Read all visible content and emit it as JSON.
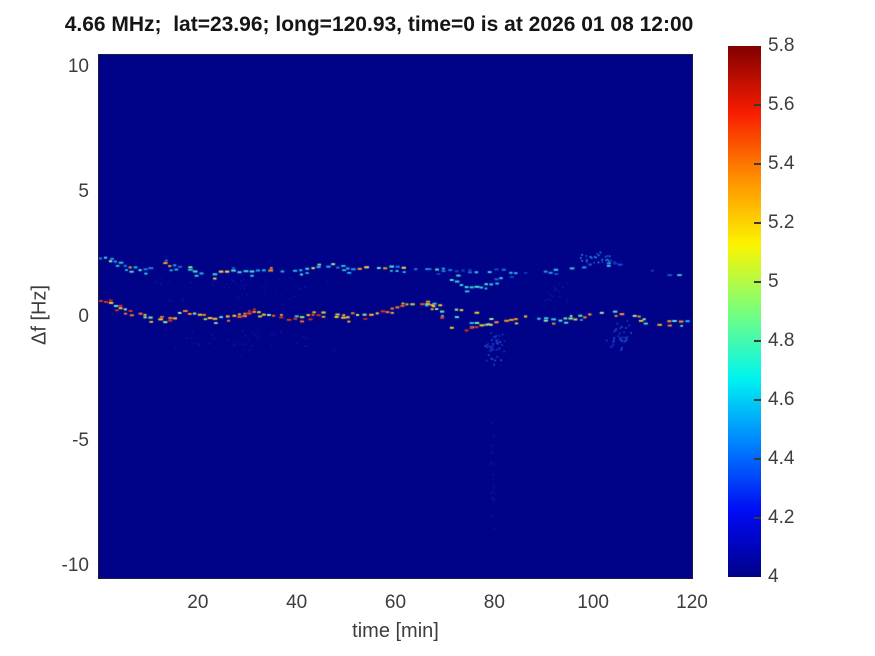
{
  "chart_data": {
    "type": "heatmap",
    "title": "4.66 MHz;  lat=23.96; long=120.93, time=0 is at 2026 01 08 12:00",
    "xlabel": "time [min]",
    "ylabel": "Δf [Hz]",
    "xlim": [
      0,
      120
    ],
    "ylim": [
      -10.5,
      10.5
    ],
    "xticks": [
      20,
      40,
      60,
      80,
      100,
      120
    ],
    "yticks": [
      10,
      5,
      0,
      -5,
      -10
    ],
    "grid": false,
    "legend": "none",
    "background_value": 4,
    "background_color": "#000287",
    "render_seed": 12,
    "colorbar": {
      "min": 4,
      "max": 5.8,
      "colormap": "jet",
      "tick_values": [
        4,
        4.2,
        4.4,
        4.6,
        4.8,
        5,
        5.2,
        5.4,
        5.6,
        5.8
      ],
      "tick_labels": [
        "4",
        "4.2",
        "4.4",
        "4.6",
        "4.8",
        "5",
        "5.2",
        "5.4",
        "5.6",
        "5.8"
      ],
      "gradient_stops": [
        {
          "pos": 0.0,
          "color": "#000287"
        },
        {
          "pos": 0.07,
          "color": "#0004c8"
        },
        {
          "pos": 0.125,
          "color": "#000cf4"
        },
        {
          "pos": 0.25,
          "color": "#0081ff"
        },
        {
          "pos": 0.375,
          "color": "#00f4f0"
        },
        {
          "pos": 0.5,
          "color": "#78ff7c"
        },
        {
          "pos": 0.625,
          "color": "#fcf400"
        },
        {
          "pos": 0.75,
          "color": "#ff9000"
        },
        {
          "pos": 0.875,
          "color": "#f81c00"
        },
        {
          "pos": 1.0,
          "color": "#820000"
        }
      ]
    },
    "traces": [
      {
        "name": "upper-doppler-trace",
        "value_range": [
          4.3,
          5.2
        ],
        "points": [
          [
            0,
            2.35
          ],
          [
            2,
            2.25
          ],
          [
            5,
            2.05
          ],
          [
            8,
            1.85
          ],
          [
            10,
            1.95
          ],
          [
            13,
            2.12
          ],
          [
            16,
            1.95
          ],
          [
            19,
            1.8
          ],
          [
            23,
            1.74
          ],
          [
            28,
            1.8
          ],
          [
            33,
            1.9
          ],
          [
            38,
            1.85
          ],
          [
            43,
            1.9
          ],
          [
            47,
            2.05
          ],
          [
            51,
            1.9
          ],
          [
            55,
            1.95
          ],
          [
            60,
            2.0
          ],
          [
            65,
            1.95
          ],
          [
            68,
            1.9
          ],
          [
            72,
            1.85
          ],
          [
            76,
            1.8
          ],
          [
            80,
            1.85
          ],
          [
            83,
            1.8
          ],
          [
            86,
            1.7
          ],
          [
            90,
            1.75
          ],
          [
            94,
            1.9
          ],
          [
            99,
            2.05
          ],
          [
            104,
            2.1
          ],
          [
            109,
            1.9
          ],
          [
            113,
            1.8
          ],
          [
            117,
            1.62
          ],
          [
            120,
            1.55
          ]
        ],
        "segments": [
          {
            "t0": 0,
            "t1": 62,
            "density": 0.85,
            "double": 0.45,
            "palette": [
              "#27b7ea",
              "#3fd8ec",
              "#1fc4f2",
              "#5ae8da",
              "#2f9ff0",
              "#1868da",
              "#9af0a8",
              "#ffe14a",
              "#ff9a2a",
              "#30c8c8",
              "#2080e8"
            ]
          },
          {
            "t0": 62,
            "t1": 84,
            "density": 0.7,
            "double": 0.3,
            "palette": [
              "#2bb8f0",
              "#1e78e0",
              "#35d0e8",
              "#1545c8",
              "#50e0d8"
            ]
          },
          {
            "t0": 84,
            "t1": 120,
            "density": 0.42,
            "double": 0.12,
            "palette": [
              "#1236c0",
              "#1c55d8",
              "#2b9ae8",
              "#0e2cb0",
              "#35c8e8"
            ]
          }
        ]
      },
      {
        "name": "upper-trace-dip-branch",
        "value_range": [
          4.3,
          4.8
        ],
        "points": [
          [
            66,
            1.85
          ],
          [
            69,
            1.6
          ],
          [
            72,
            1.35
          ],
          [
            75,
            1.15
          ],
          [
            78,
            1.25
          ],
          [
            80,
            1.45
          ],
          [
            82,
            1.65
          ]
        ],
        "segments": [
          {
            "t0": 60,
            "t1": 120,
            "density": 0.6,
            "double": 0.2,
            "palette": [
              "#35d0e8",
              "#2b8ae8",
              "#1e5cd8",
              "#50e0d8"
            ]
          }
        ]
      },
      {
        "name": "lower-doppler-trace",
        "value_range": [
          4.6,
          5.7
        ],
        "points": [
          [
            0,
            0.62
          ],
          [
            2,
            0.5
          ],
          [
            5,
            0.25
          ],
          [
            8,
            0.05
          ],
          [
            11,
            -0.1
          ],
          [
            13,
            -0.2
          ],
          [
            15,
            -0.05
          ],
          [
            17,
            0.2
          ],
          [
            20,
            0.05
          ],
          [
            23,
            -0.1
          ],
          [
            27,
            0.0
          ],
          [
            31,
            0.15
          ],
          [
            35,
            0.0
          ],
          [
            38,
            -0.08
          ],
          [
            42,
            0.0
          ],
          [
            45,
            0.1
          ],
          [
            49,
            0.0
          ],
          [
            52,
            0.1
          ],
          [
            56,
            0.15
          ],
          [
            60,
            0.3
          ],
          [
            63,
            0.5
          ],
          [
            65,
            0.55
          ],
          [
            67,
            0.45
          ],
          [
            70,
            0.1
          ],
          [
            73,
            -0.15
          ],
          [
            76,
            -0.25
          ],
          [
            79,
            -0.35
          ],
          [
            83,
            -0.15
          ],
          [
            86,
            0.0
          ],
          [
            90,
            -0.1
          ],
          [
            93,
            -0.15
          ],
          [
            96,
            -0.05
          ],
          [
            100,
            0.1
          ],
          [
            104,
            0.15
          ],
          [
            108,
            0.05
          ],
          [
            111,
            -0.1
          ],
          [
            113,
            -0.3
          ],
          [
            116,
            -0.2
          ],
          [
            120,
            -0.15
          ]
        ],
        "segments": [
          {
            "t0": 0,
            "t1": 58,
            "density": 0.92,
            "double": 0.5,
            "palette": [
              "#ff8c1a",
              "#ff5a1a",
              "#e83418",
              "#ffd22a",
              "#c8e83a",
              "#ffae2a",
              "#58e8d8",
              "#9af0a8",
              "#ff7a3a",
              "#ffc82a",
              "#d83018"
            ]
          },
          {
            "t0": 58,
            "t1": 67,
            "density": 1.0,
            "double": 0.75,
            "palette": [
              "#ffd22a",
              "#ff8c1a",
              "#e83418",
              "#c8e83a",
              "#ffae2a",
              "#ff5a1a"
            ]
          },
          {
            "t0": 67,
            "t1": 120,
            "density": 0.78,
            "double": 0.28,
            "palette": [
              "#58e8d8",
              "#9af0a8",
              "#ffd22a",
              "#2bb8f0",
              "#ff9a2a",
              "#c8e83a",
              "#35d0e8",
              "#7ae8b0",
              "#ffae2a"
            ]
          }
        ]
      },
      {
        "name": "lower-trace-deep-branch",
        "value_range": [
          4.5,
          5.2
        ],
        "points": [
          [
            67,
            0.35
          ],
          [
            69,
            -0.1
          ],
          [
            71,
            -0.45
          ],
          [
            73,
            -0.6
          ],
          [
            75,
            -0.5
          ],
          [
            77,
            -0.38
          ],
          [
            80,
            -0.3
          ]
        ],
        "segments": [
          {
            "t0": 60,
            "t1": 120,
            "density": 0.65,
            "double": 0.15,
            "palette": [
              "#35d0e8",
              "#58e8d8",
              "#ffd22a",
              "#2b8ae8",
              "#e83418"
            ]
          }
        ]
      },
      {
        "name": "lower-trace-high-branch",
        "value_range": [
          4.5,
          5.1
        ],
        "points": [
          [
            66,
            0.5
          ],
          [
            70,
            0.38
          ],
          [
            74,
            0.2
          ],
          [
            78,
            0.0
          ],
          [
            81,
            -0.2
          ]
        ],
        "segments": [
          {
            "t0": 60,
            "t1": 120,
            "density": 0.6,
            "double": 0.15,
            "palette": [
              "#9af0a8",
              "#35d0e8",
              "#ffd22a",
              "#2bb8f0"
            ]
          }
        ]
      }
    ],
    "noise_clusters": [
      {
        "t": 80,
        "f": -1.1,
        "dt": 3,
        "df": 1.0,
        "count": 45,
        "colors": [
          "#1c3cc8",
          "#2456d8",
          "#1428b0"
        ]
      },
      {
        "t": 105,
        "f": -0.7,
        "dt": 4,
        "df": 0.9,
        "count": 35,
        "colors": [
          "#1c3cc8",
          "#2456d8"
        ]
      },
      {
        "t": 79.5,
        "f": -6.0,
        "dt": 0.8,
        "df": 2.8,
        "count": 22,
        "colors": [
          "#0d12a0",
          "#10189e"
        ]
      },
      {
        "t": 101,
        "f": 2.35,
        "dt": 5,
        "df": 0.35,
        "count": 26,
        "colors": [
          "#1c50d8",
          "#2b8ae8"
        ]
      },
      {
        "t": 93,
        "f": 1.0,
        "dt": 4,
        "df": 0.8,
        "count": 18,
        "colors": [
          "#0d12a0",
          "#10189e"
        ]
      },
      {
        "t": 30,
        "f": 1.2,
        "dt": 25,
        "df": 0.9,
        "count": 50,
        "colors": [
          "#0a10a0",
          "#0d16a8"
        ]
      },
      {
        "t": 30,
        "f": -0.9,
        "dt": 25,
        "df": 0.7,
        "count": 45,
        "colors": [
          "#0a10a0",
          "#0d16a8"
        ]
      }
    ]
  }
}
